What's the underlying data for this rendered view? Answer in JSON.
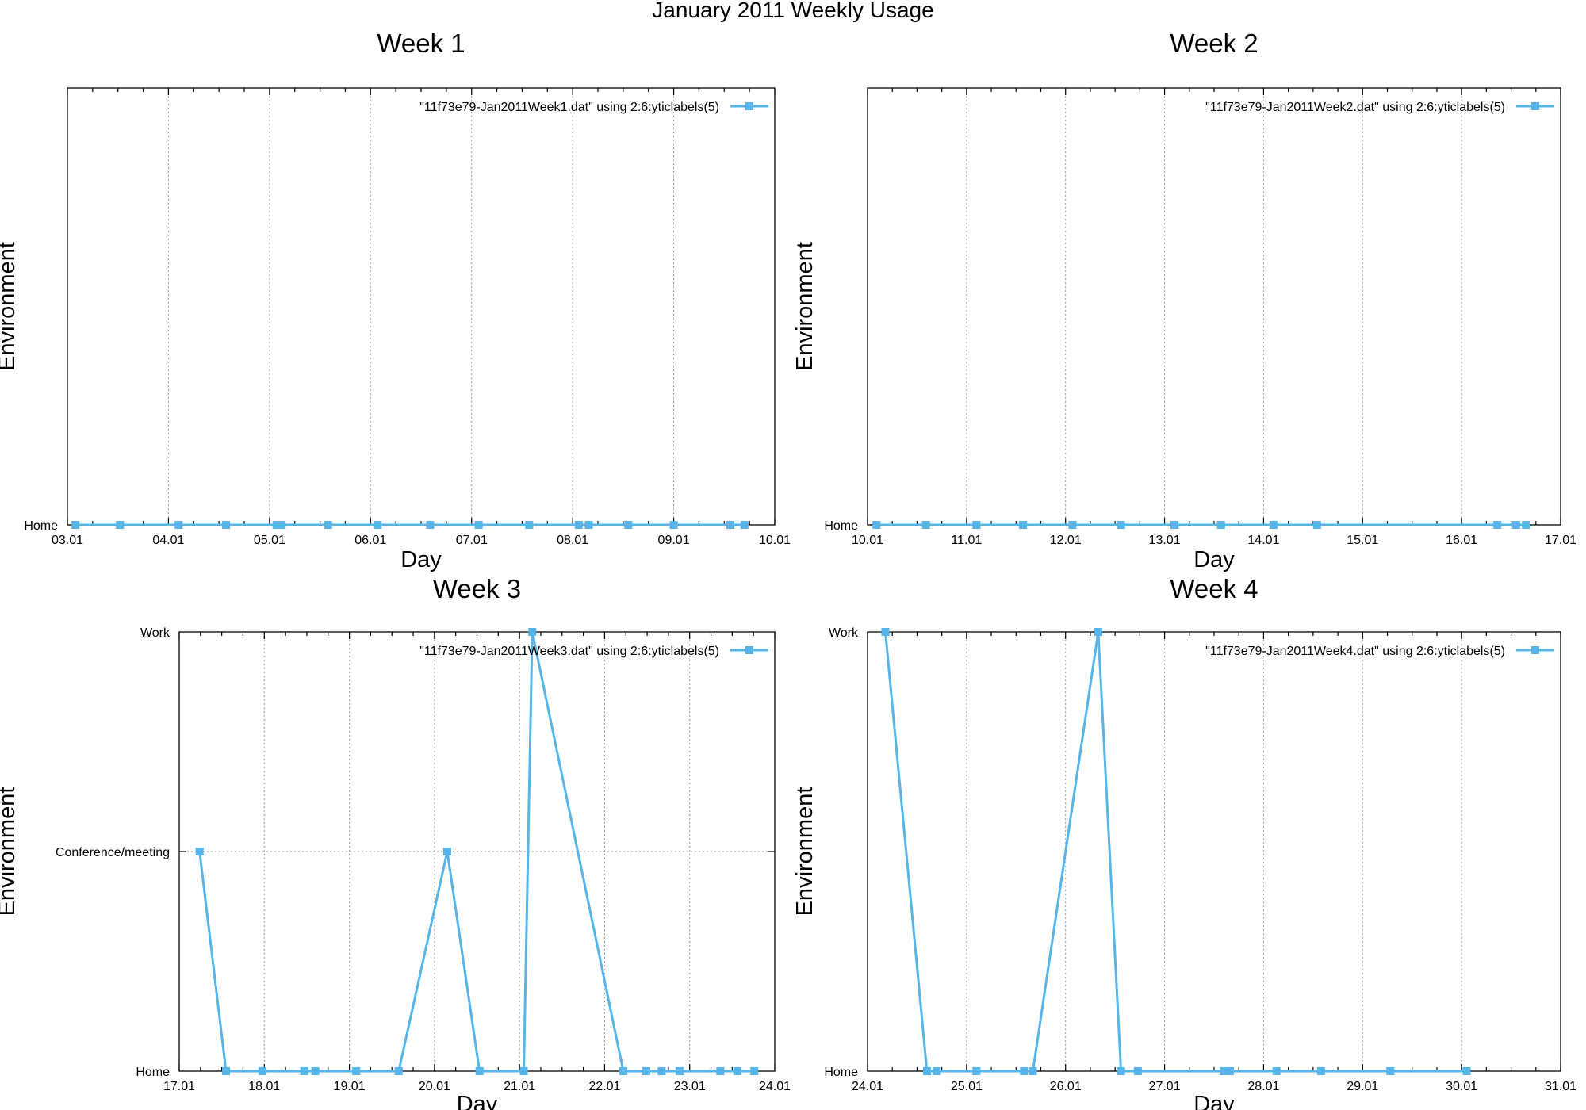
{
  "figure": {
    "title": "January 2011 Weekly Usage"
  },
  "chart_data": [
    {
      "type": "line",
      "title": "Week 1",
      "xlabel": "Day",
      "ylabel": "Environment",
      "x_ticks": [
        "03.01",
        "04.01",
        "05.01",
        "06.01",
        "07.01",
        "08.01",
        "09.01",
        "10.01"
      ],
      "xlim": [
        0,
        7
      ],
      "y_categories": [
        "Home"
      ],
      "ylim": [
        0,
        1
      ],
      "legend": "top-right",
      "grid": "vertical",
      "series": [
        {
          "name": "\"11f73e79-Jan2011Week1.dat\" using 2:6:yticlabels(5)",
          "x": [
            0.08,
            0.52,
            1.1,
            1.57,
            2.07,
            2.12,
            2.58,
            3.07,
            3.59,
            4.07,
            4.57,
            5.06,
            5.16,
            5.55,
            6.0,
            6.56,
            6.7
          ],
          "y": [
            "Home",
            "Home",
            "Home",
            "Home",
            "Home",
            "Home",
            "Home",
            "Home",
            "Home",
            "Home",
            "Home",
            "Home",
            "Home",
            "Home",
            "Home",
            "Home",
            "Home"
          ]
        }
      ]
    },
    {
      "type": "line",
      "title": "Week 2",
      "xlabel": "Day",
      "ylabel": "Environment",
      "x_ticks": [
        "10.01",
        "11.01",
        "12.01",
        "13.01",
        "14.01",
        "15.01",
        "16.01",
        "17.01"
      ],
      "xlim": [
        0,
        7
      ],
      "y_categories": [
        "Home"
      ],
      "ylim": [
        0,
        1
      ],
      "legend": "top-right",
      "grid": "vertical",
      "series": [
        {
          "name": "\"11f73e79-Jan2011Week2.dat\" using 2:6:yticlabels(5)",
          "x": [
            0.09,
            0.59,
            1.1,
            1.57,
            2.07,
            2.56,
            3.1,
            3.57,
            4.1,
            4.54,
            6.36,
            6.55,
            6.65
          ],
          "y": [
            "Home",
            "Home",
            "Home",
            "Home",
            "Home",
            "Home",
            "Home",
            "Home",
            "Home",
            "Home",
            "Home",
            "Home",
            "Home"
          ]
        }
      ]
    },
    {
      "type": "line",
      "title": "Week 3",
      "xlabel": "Day",
      "ylabel": "Environment",
      "x_ticks": [
        "17.01",
        "18.01",
        "19.01",
        "20.01",
        "21.01",
        "22.01",
        "23.01",
        "24.01"
      ],
      "xlim": [
        0,
        7
      ],
      "y_categories": [
        "Home",
        "Conference/meeting",
        "Work"
      ],
      "ylim": [
        0,
        2
      ],
      "legend": "top-right",
      "grid": "vertical and Conference/meeting level",
      "series": [
        {
          "name": "\"11f73e79-Jan2011Week3.dat\" using 2:6:yticlabels(5)",
          "x": [
            0.24,
            0.55,
            0.98,
            1.47,
            1.6,
            2.08,
            2.58,
            3.15,
            3.53,
            4.05,
            4.15,
            5.22,
            5.49,
            5.67,
            5.88,
            6.36,
            6.56,
            6.76
          ],
          "y": [
            "Conference/meeting",
            "Home",
            "Home",
            "Home",
            "Home",
            "Home",
            "Home",
            "Conference/meeting",
            "Home",
            "Home",
            "Work",
            "Home",
            "Home",
            "Home",
            "Home",
            "Home",
            "Home",
            "Home"
          ]
        }
      ]
    },
    {
      "type": "line",
      "title": "Week 4",
      "xlabel": "Day",
      "ylabel": "Environment",
      "x_ticks": [
        "24.01",
        "25.01",
        "26.01",
        "27.01",
        "28.01",
        "29.01",
        "30.01",
        "31.01"
      ],
      "xlim": [
        0,
        7
      ],
      "y_categories": [
        "Home",
        "Work"
      ],
      "ylim": [
        0,
        1
      ],
      "legend": "top-right",
      "grid": "vertical",
      "series": [
        {
          "name": "\"11f73e79-Jan2011Week4.dat\" using 2:6:yticlabels(5)",
          "x": [
            0.18,
            0.6,
            0.7,
            1.1,
            1.58,
            1.67,
            2.33,
            2.56,
            2.73,
            3.6,
            3.66,
            4.13,
            4.58,
            5.28,
            6.05
          ],
          "y": [
            "Work",
            "Home",
            "Home",
            "Home",
            "Home",
            "Home",
            "Work",
            "Home",
            "Home",
            "Home",
            "Home",
            "Home",
            "Home",
            "Home",
            "Home"
          ]
        }
      ]
    }
  ]
}
